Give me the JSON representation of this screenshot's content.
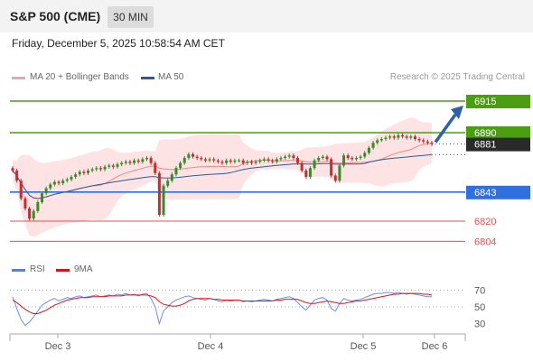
{
  "header": {
    "title": "S&P 500 (CME)",
    "timeframe": "30 MIN"
  },
  "datetime": "Friday, December 5, 2025 10:58:54 AM CET",
  "legend_top": [
    {
      "label": "MA 20 + Bollinger Bands",
      "color": "#f4a3a3"
    },
    {
      "label": "MA 50",
      "color": "#2b5a9c"
    }
  ],
  "research": "Research © 2025 Trading Central",
  "legend_rsi": [
    {
      "label": "RSI",
      "color": "#5a7fe0"
    },
    {
      "label": "9MA",
      "color": "#e01010"
    }
  ],
  "colors": {
    "resistance": "#4b9e0f",
    "support": "#2f6fe0",
    "current": "#2a2a2a",
    "minor_support": "#e05050",
    "up": "#3a8a2a",
    "down": "#c03030"
  },
  "levels": [
    {
      "label": "6915",
      "value": 6915,
      "type": "resistance"
    },
    {
      "label": "6890",
      "value": 6890,
      "type": "resistance"
    },
    {
      "label": "6881",
      "value": 6881,
      "type": "current"
    },
    {
      "label": "6843",
      "value": 6843,
      "type": "support"
    },
    {
      "label": "6820",
      "value": 6820,
      "type": "minor_support"
    },
    {
      "label": "6804",
      "value": 6804,
      "type": "minor_support"
    }
  ],
  "rsi_axis": [
    "70",
    "50",
    "30"
  ],
  "x_axis": [
    "Dec 3",
    "Dec 4",
    "Dec 5",
    "Dec 6"
  ],
  "chart_data": {
    "type": "candlestick",
    "y_range": [
      6795,
      6925
    ],
    "rsi_range": [
      20,
      80
    ],
    "closes": [
      6860,
      6852,
      6838,
      6830,
      6822,
      6828,
      6835,
      6842,
      6846,
      6849,
      6851,
      6850,
      6852,
      6853,
      6855,
      6857,
      6859,
      6858,
      6860,
      6861,
      6862,
      6861,
      6863,
      6864,
      6863,
      6865,
      6866,
      6867,
      6866,
      6868,
      6867,
      6869,
      6870,
      6866,
      6858,
      6825,
      6848,
      6852,
      6857,
      6862,
      6866,
      6870,
      6873,
      6871,
      6870,
      6869,
      6868,
      6869,
      6868,
      6867,
      6866,
      6868,
      6867,
      6868,
      6868,
      6866,
      6867,
      6866,
      6867,
      6868,
      6869,
      6868,
      6867,
      6869,
      6870,
      6871,
      6872,
      6870,
      6866,
      6860,
      6855,
      6862,
      6868,
      6870,
      6871,
      6869,
      6856,
      6852,
      6864,
      6872,
      6870,
      6869,
      6870,
      6871,
      6874,
      6878,
      6882,
      6884,
      6885,
      6886,
      6887,
      6886,
      6888,
      6887,
      6886,
      6887,
      6885,
      6884,
      6883,
      6882,
      6881
    ],
    "rsi": [
      62,
      48,
      35,
      28,
      32,
      38,
      45,
      52,
      55,
      58,
      60,
      57,
      59,
      61,
      60,
      62,
      63,
      61,
      62,
      63,
      64,
      62,
      63,
      64,
      63,
      65,
      64,
      66,
      64,
      65,
      63,
      65,
      66,
      60,
      50,
      30,
      45,
      50,
      55,
      58,
      60,
      62,
      63,
      61,
      60,
      59,
      58,
      60,
      59,
      57,
      56,
      58,
      57,
      58,
      58,
      56,
      57,
      56,
      57,
      58,
      59,
      58,
      57,
      59,
      60,
      61,
      62,
      60,
      55,
      50,
      46,
      52,
      58,
      60,
      61,
      58,
      48,
      45,
      54,
      60,
      58,
      57,
      58,
      59,
      61,
      63,
      65,
      66,
      66,
      67,
      67,
      66,
      67,
      66,
      65,
      66,
      65,
      64,
      63,
      62,
      62
    ],
    "rsi_ma": [
      58,
      55,
      51,
      47,
      44,
      42,
      42,
      44,
      46,
      49,
      52,
      54,
      56,
      58,
      59,
      60,
      61,
      61,
      61,
      62,
      62,
      62,
      62,
      63,
      63,
      63,
      63,
      64,
      64,
      64,
      64,
      64,
      64,
      63,
      61,
      56,
      53,
      52,
      51,
      51,
      52,
      54,
      57,
      59,
      60,
      60,
      60,
      60,
      59,
      59,
      58,
      58,
      58,
      58,
      58,
      57,
      57,
      57,
      57,
      57,
      57,
      57,
      57,
      58,
      58,
      59,
      59,
      59,
      59,
      57,
      55,
      54,
      54,
      55,
      56,
      57,
      56,
      55,
      54,
      54,
      55,
      56,
      57,
      57,
      58,
      59,
      60,
      61,
      62,
      63,
      64,
      65,
      65,
      66,
      66,
      66,
      66,
      66,
      65,
      65,
      64
    ]
  }
}
